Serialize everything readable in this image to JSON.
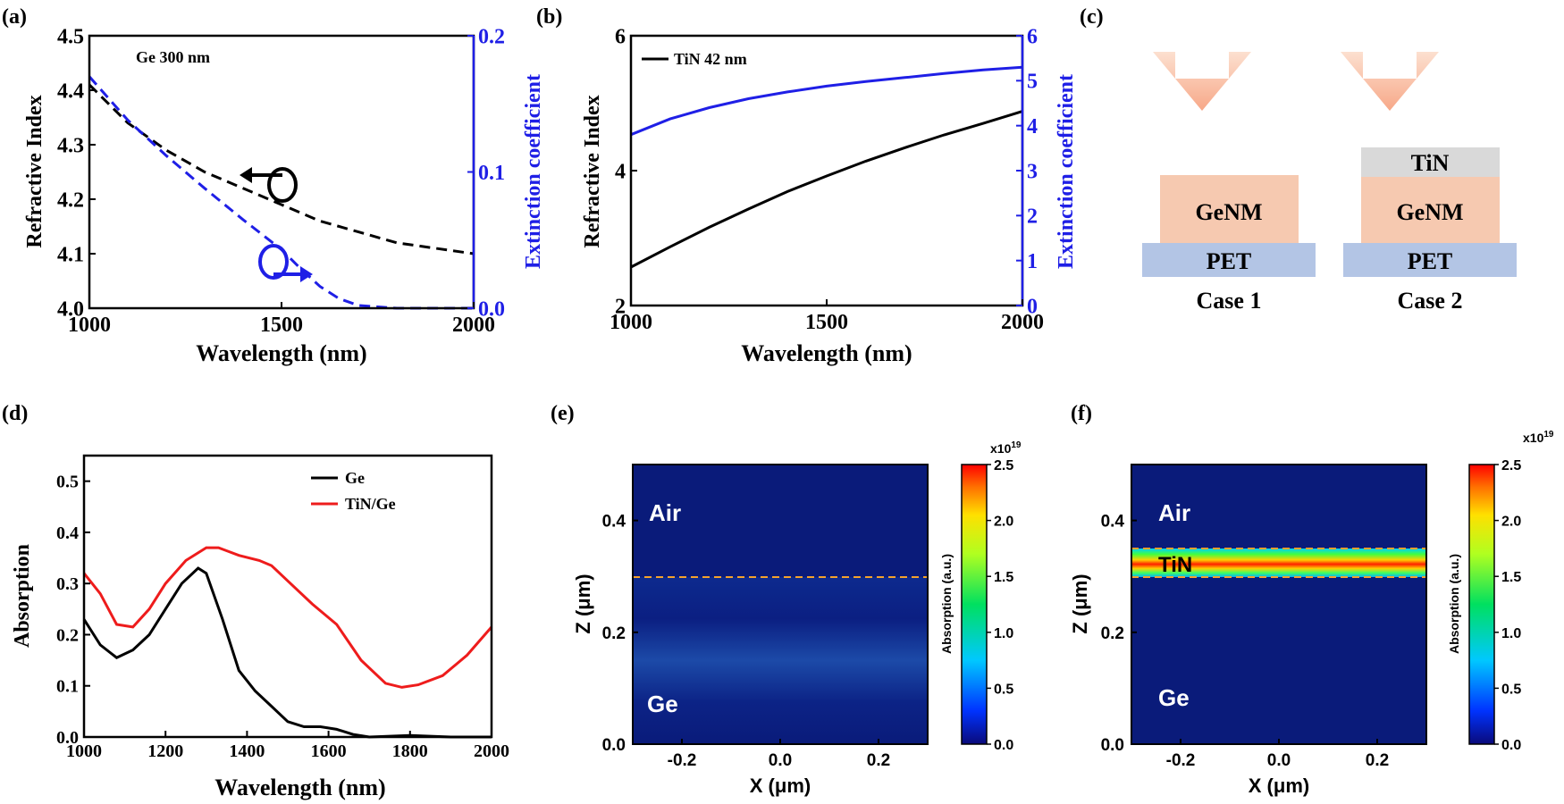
{
  "panel_labels": [
    "(a)",
    "(b)",
    "(c)",
    "(d)",
    "(e)",
    "(f)"
  ],
  "colors": {
    "blue": "#1f1fe6",
    "red": "#ee1c1c",
    "black": "#000000",
    "arrow": "#f9b79a",
    "orange_layer": "#f6c9b0",
    "blue_layer": "#b3c5e5",
    "gray_layer": "#d9d9d9",
    "field_bg": "#0a1b7a",
    "boundary": "#f4a22c"
  },
  "chart_data": [
    {
      "type": "line",
      "panel": "(a)",
      "title": "",
      "annotation": "Ge 300 nm",
      "xlabel": "Wavelength (nm)",
      "ylabel": "Refractive Index",
      "y2label": "Extinction coefficient",
      "xlim": [
        1000,
        2000
      ],
      "ylim": [
        4.0,
        4.5
      ],
      "y2lim": [
        0.0,
        0.2
      ],
      "xticks": [
        "1000",
        "1500",
        "2000"
      ],
      "yticks": [
        "4.0",
        "4.1",
        "4.2",
        "4.3",
        "4.4",
        "4.5"
      ],
      "y2ticks": [
        "0.0",
        "0.1",
        "0.2"
      ],
      "series": [
        {
          "axis": "left",
          "style": "dashed",
          "color": "#000000",
          "x": [
            1000,
            1100,
            1200,
            1300,
            1400,
            1500,
            1600,
            1700,
            1800,
            1900,
            2000
          ],
          "y": [
            4.41,
            4.34,
            4.29,
            4.25,
            4.22,
            4.19,
            4.16,
            4.14,
            4.12,
            4.11,
            4.1
          ]
        },
        {
          "axis": "right",
          "style": "dashed",
          "color": "#1f1fe6",
          "x": [
            1000,
            1100,
            1200,
            1300,
            1400,
            1500,
            1550,
            1600,
            1650,
            1700,
            1800,
            2000
          ],
          "y": [
            0.17,
            0.138,
            0.112,
            0.088,
            0.065,
            0.043,
            0.029,
            0.016,
            0.007,
            0.002,
            0.0,
            0.0
          ]
        }
      ]
    },
    {
      "type": "line",
      "panel": "(b)",
      "title": "",
      "xlabel": "Wavelength (nm)",
      "ylabel": "Refractive Index",
      "y2label": "Extinction coefficient",
      "xlim": [
        1000,
        2000
      ],
      "ylim": [
        2,
        6
      ],
      "y2lim": [
        0,
        6
      ],
      "xticks": [
        "1000",
        "1500",
        "2000"
      ],
      "yticks": [
        "2",
        "4",
        "6"
      ],
      "y2ticks": [
        "0",
        "1",
        "2",
        "3",
        "4",
        "5",
        "6"
      ],
      "legend": [
        "TiN 42 nm"
      ],
      "series": [
        {
          "name": "TiN 42 nm",
          "axis": "left",
          "color": "#000000",
          "x": [
            1000,
            1100,
            1200,
            1300,
            1400,
            1500,
            1600,
            1700,
            1800,
            1900,
            2000
          ],
          "y": [
            2.57,
            2.87,
            3.16,
            3.43,
            3.69,
            3.92,
            4.14,
            4.34,
            4.53,
            4.7,
            4.88
          ]
        },
        {
          "axis": "right",
          "color": "#1f1fe6",
          "x": [
            1000,
            1100,
            1200,
            1300,
            1400,
            1500,
            1600,
            1700,
            1800,
            1900,
            2000
          ],
          "y": [
            3.8,
            4.15,
            4.4,
            4.6,
            4.75,
            4.88,
            4.98,
            5.07,
            5.16,
            5.24,
            5.3
          ]
        }
      ]
    },
    {
      "type": "line",
      "panel": "(d)",
      "title": "",
      "xlabel": "Wavelength (nm)",
      "ylabel": "Absorption",
      "xlim": [
        1000,
        2000
      ],
      "ylim": [
        0.0,
        0.55
      ],
      "xticks": [
        "1000",
        "1200",
        "1400",
        "1600",
        "1800",
        "2000"
      ],
      "yticks": [
        "0.0",
        "0.1",
        "0.2",
        "0.3",
        "0.4",
        "0.5"
      ],
      "legend": [
        "Ge",
        "TiN/Ge"
      ],
      "series": [
        {
          "name": "Ge",
          "color": "#000000",
          "x": [
            1000,
            1040,
            1080,
            1120,
            1160,
            1200,
            1240,
            1280,
            1300,
            1340,
            1380,
            1420,
            1460,
            1500,
            1540,
            1580,
            1620,
            1660,
            1700,
            1800,
            1900,
            2000
          ],
          "y": [
            0.23,
            0.18,
            0.155,
            0.17,
            0.2,
            0.25,
            0.3,
            0.33,
            0.32,
            0.23,
            0.13,
            0.09,
            0.06,
            0.03,
            0.02,
            0.02,
            0.015,
            0.005,
            0.0,
            0.003,
            0.0,
            0.0
          ]
        },
        {
          "name": "TiN/Ge",
          "color": "#ee1c1c",
          "x": [
            1000,
            1040,
            1080,
            1120,
            1160,
            1200,
            1250,
            1300,
            1330,
            1380,
            1430,
            1460,
            1500,
            1560,
            1620,
            1680,
            1740,
            1780,
            1820,
            1880,
            1940,
            2000
          ],
          "y": [
            0.32,
            0.28,
            0.22,
            0.215,
            0.25,
            0.3,
            0.345,
            0.37,
            0.37,
            0.355,
            0.345,
            0.335,
            0.305,
            0.26,
            0.22,
            0.15,
            0.105,
            0.097,
            0.102,
            0.12,
            0.16,
            0.215
          ]
        }
      ]
    },
    {
      "type": "heatmap",
      "panel": "(e)",
      "xlabel": "X (μm)",
      "ylabel": "Z (μm)",
      "xlim": [
        -0.3,
        0.3
      ],
      "ylim": [
        0.0,
        0.5
      ],
      "xticks": [
        "-0.2",
        "0.0",
        "0.2"
      ],
      "yticks": [
        "0.0",
        "0.2",
        "0.4"
      ],
      "regions": [
        "Air",
        "Ge"
      ],
      "boundary_z": [
        0.3
      ],
      "colorbar": {
        "label": "Absorption (a.u.)",
        "exponent": "x10",
        "exponent_power": "19",
        "range": [
          0.0,
          2.5
        ],
        "ticks": [
          "0.0",
          "0.5",
          "1.0",
          "1.5",
          "2.0",
          "2.5"
        ]
      }
    },
    {
      "type": "heatmap",
      "panel": "(f)",
      "xlabel": "X (μm)",
      "ylabel": "Z (μm)",
      "xlim": [
        -0.3,
        0.3
      ],
      "ylim": [
        0.0,
        0.5
      ],
      "xticks": [
        "-0.2",
        "0.0",
        "0.2"
      ],
      "yticks": [
        "0.0",
        "0.2",
        "0.4"
      ],
      "regions": [
        "Air",
        "TiN",
        "Ge"
      ],
      "boundary_z": [
        0.3,
        0.35
      ],
      "colorbar": {
        "label": "Absorption (a.u.)",
        "exponent": "x10",
        "exponent_power": "19",
        "range": [
          0.0,
          2.5
        ],
        "ticks": [
          "0.0",
          "0.5",
          "1.0",
          "1.5",
          "2.0",
          "2.5"
        ]
      }
    }
  ],
  "diagram": {
    "case1": {
      "layers": [
        "GeNM",
        "PET"
      ],
      "label": "Case 1"
    },
    "case2": {
      "layers": [
        "TiN",
        "GeNM",
        "PET"
      ],
      "label": "Case 2"
    }
  }
}
